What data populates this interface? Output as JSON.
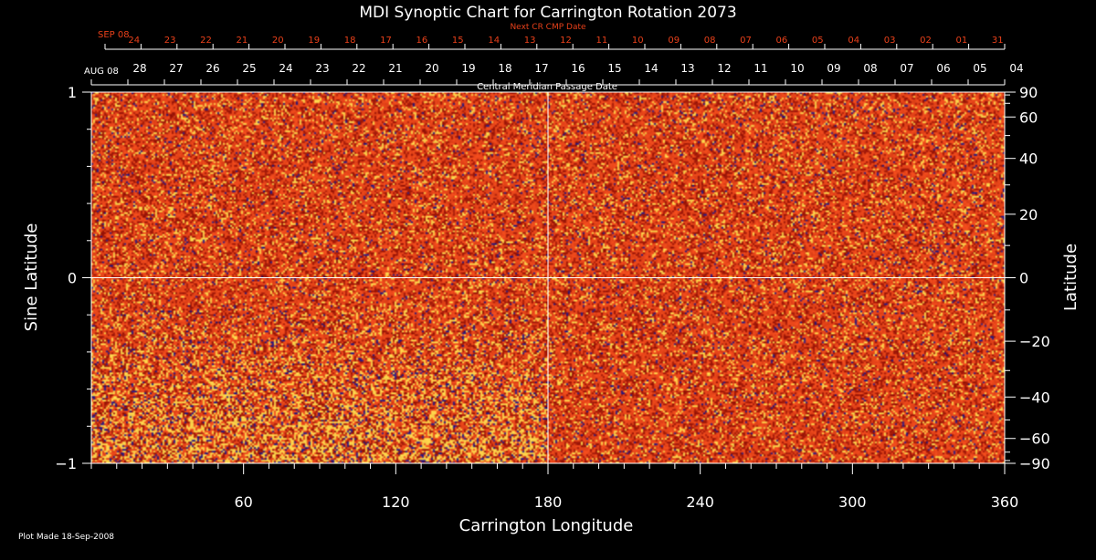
{
  "chart_data": {
    "type": "heatmap",
    "title": "MDI Synoptic Chart for Carrington Rotation 2073",
    "xlabel": "Carrington Longitude",
    "ylabel_left": "Sine Latitude",
    "ylabel_right": "Latitude",
    "xlim": [
      0,
      360
    ],
    "ylim": [
      -1,
      1
    ],
    "x_ticks_labeled": [
      60,
      120,
      180,
      240,
      300,
      360
    ],
    "x_minor_step": 10,
    "y_left_ticks_labeled": [
      1,
      0,
      -1
    ],
    "y_left_tick_labels": [
      "1",
      "0",
      "−1"
    ],
    "y_left_minor_step": 0.2,
    "y_right_ticks": [
      90,
      60,
      40,
      20,
      0,
      -20,
      -40,
      -60,
      -90
    ],
    "y_right_tick_labels": [
      "90",
      "60",
      "40",
      "20",
      "0",
      "−20",
      "−40",
      "−60",
      "−90"
    ],
    "grid_lines": {
      "x": [
        180
      ],
      "y": [
        0
      ]
    },
    "colors": {
      "background": "#000000",
      "base": "#e8461a",
      "dark": "#a01808",
      "bright": "#ffd24a",
      "negative": "#2a1a80",
      "annotation": "#e8401a",
      "axis": "#ffffff"
    },
    "top_axis_annotation": "Next CR CMP Date",
    "top_axis_red_dates": {
      "label": "SEP 08",
      "days": [
        "24",
        "23",
        "22",
        "21",
        "20",
        "19",
        "18",
        "17",
        "16",
        "15",
        "14",
        "13",
        "12",
        "11",
        "10",
        "09",
        "08",
        "07",
        "06",
        "05",
        "04",
        "03",
        "02",
        "01",
        "31"
      ]
    },
    "top_axis_white_dates": {
      "label": "AUG 08",
      "days": [
        "28",
        "27",
        "26",
        "25",
        "24",
        "23",
        "22",
        "21",
        "20",
        "19",
        "18",
        "17",
        "16",
        "15",
        "14",
        "13",
        "12",
        "11",
        "10",
        "09",
        "08",
        "07",
        "06",
        "05",
        "04"
      ]
    },
    "cmp_label": "Central Meridian Passage Date",
    "footer": "Plot Made 18-Sep-2008"
  }
}
